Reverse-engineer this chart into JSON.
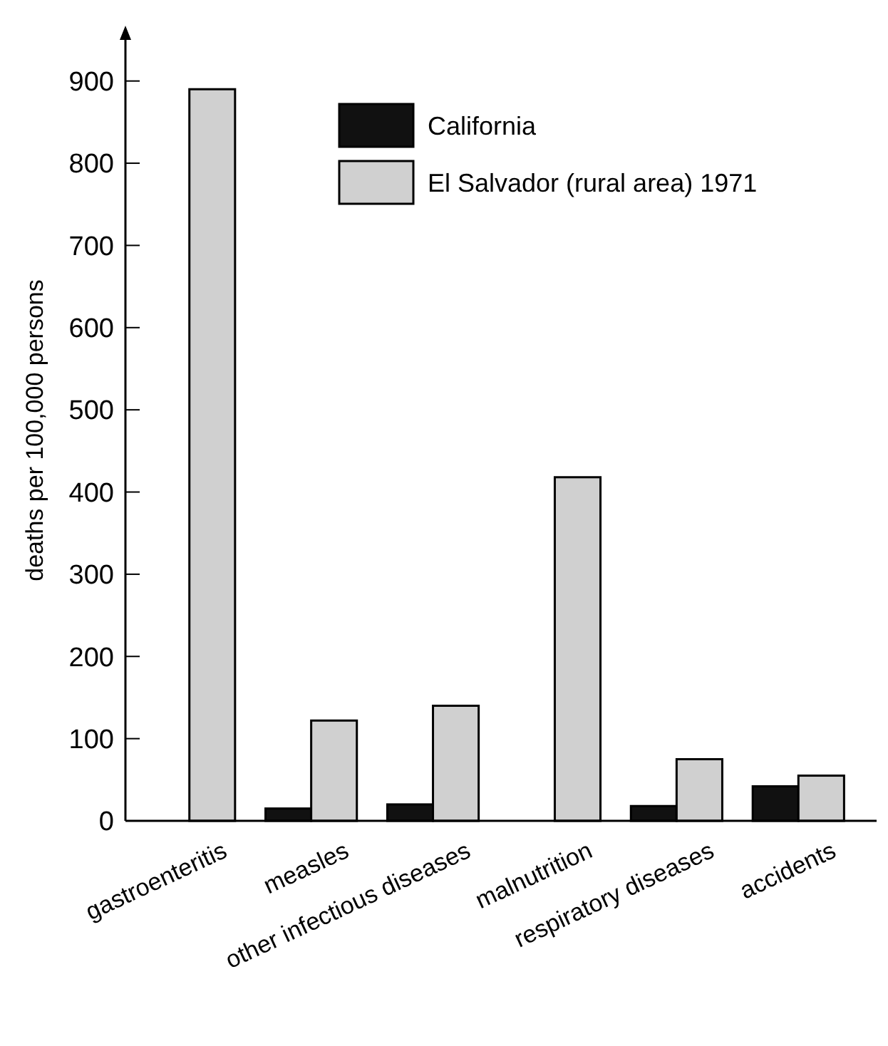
{
  "chart_data": {
    "type": "bar",
    "ylabel": "deaths per 100,000 persons",
    "categories": [
      "gastroenteritis",
      "measles",
      "other infectious diseases",
      "malnutrition",
      "respiratory diseases",
      "accidents"
    ],
    "series": [
      {
        "name": "California",
        "color": "#111111",
        "values": [
          0,
          15,
          20,
          0,
          18,
          42
        ]
      },
      {
        "name": "El Salvador (rural area) 1971",
        "color": "#d0d0d0",
        "values": [
          890,
          122,
          140,
          418,
          75,
          55
        ]
      }
    ],
    "ylim": [
      0,
      950
    ],
    "yticks": [
      0,
      100,
      200,
      300,
      400,
      500,
      600,
      700,
      800,
      900
    ],
    "grid": false,
    "legend": "top right"
  }
}
